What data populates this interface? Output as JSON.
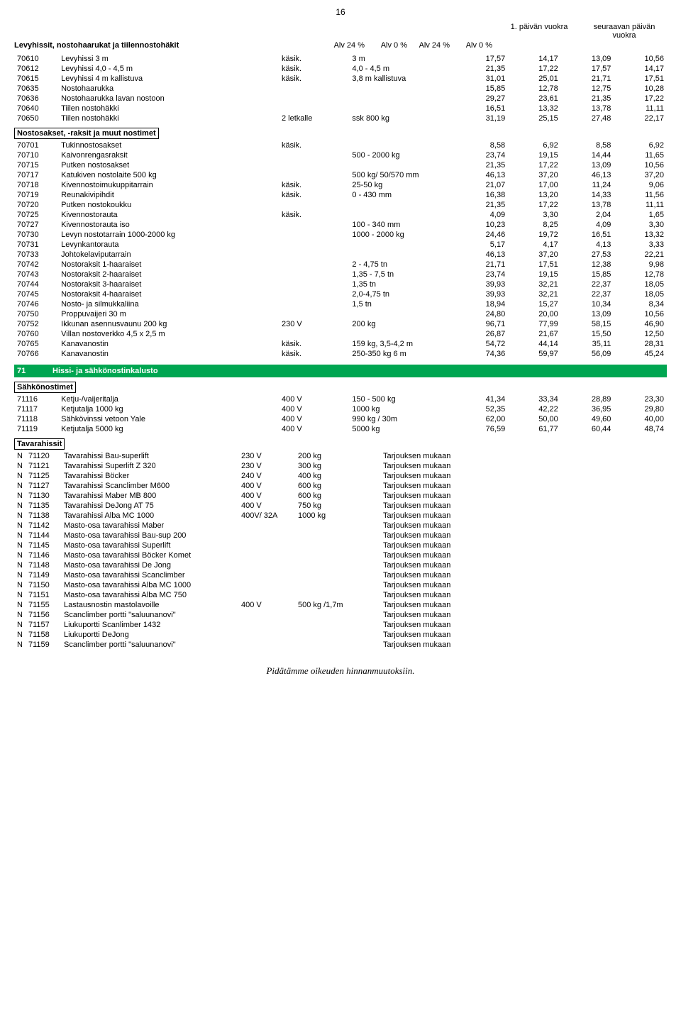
{
  "page_number": "16",
  "header": {
    "top_left": "1. päivän vuokra",
    "top_right": "seuraavan päivän vuokra",
    "sub": [
      "Alv 24 %",
      "Alv 0 %",
      "Alv 24 %",
      "Alv 0 %"
    ]
  },
  "colors": {
    "green": "#00a651",
    "text": "#000000",
    "bg": "#ffffff"
  },
  "section1": {
    "title": "Levyhissit, nostohaarukat ja tiilennostohäkit",
    "rows": [
      [
        "70610",
        "Levyhissi 3 m",
        "käsik.",
        "3 m",
        "17,57",
        "14,17",
        "13,09",
        "10,56"
      ],
      [
        "70612",
        "Levyhissi 4,0 - 4,5 m",
        "käsik.",
        "4,0 - 4,5 m",
        "21,35",
        "17,22",
        "17,57",
        "14,17"
      ],
      [
        "70615",
        "Levyhissi 4 m kallistuva",
        "käsik.",
        "3,8 m kallistuva",
        "31,01",
        "25,01",
        "21,71",
        "17,51"
      ],
      [
        "70635",
        "Nostohaarukka",
        "",
        "",
        "15,85",
        "12,78",
        "12,75",
        "10,28"
      ],
      [
        "70636",
        "Nostohaarukka lavan nostoon",
        "",
        "",
        "29,27",
        "23,61",
        "21,35",
        "17,22"
      ],
      [
        "70640",
        "Tiilen nostohäkki",
        "",
        "",
        "16,51",
        "13,32",
        "13,78",
        "11,11"
      ],
      [
        "70650",
        "Tiilen nostohäkki",
        "2 letkalle",
        "ssk 800 kg",
        "31,19",
        "25,15",
        "27,48",
        "22,17"
      ]
    ]
  },
  "section2": {
    "title": "Nostosakset, -raksit ja muut nostimet",
    "rows": [
      [
        "70701",
        "Tukinnostosakset",
        "käsik.",
        "",
        "8,58",
        "6,92",
        "8,58",
        "6,92"
      ],
      [
        "70710",
        "Kaivonrengasraksit",
        "",
        "500 - 2000 kg",
        "23,74",
        "19,15",
        "14,44",
        "11,65"
      ],
      [
        "70715",
        "Putken nostosakset",
        "",
        "",
        "21,35",
        "17,22",
        "13,09",
        "10,56"
      ],
      [
        "70717",
        "Katukiven nostolaite 500 kg",
        "",
        "500 kg/ 50/570 mm",
        "46,13",
        "37,20",
        "46,13",
        "37,20"
      ],
      [
        "70718",
        "Kivennostoimukuppitarrain",
        "käsik.",
        "25-50 kg",
        "21,07",
        "17,00",
        "11,24",
        "9,06"
      ],
      [
        "70719",
        "Reunakivipihdit",
        "käsik.",
        "0 - 430 mm",
        "16,38",
        "13,20",
        "14,33",
        "11,56"
      ],
      [
        "70720",
        "Putken nostokoukku",
        "",
        "",
        "21,35",
        "17,22",
        "13,78",
        "11,11"
      ],
      [
        "70725",
        "Kivennostorauta",
        "käsik.",
        "",
        "4,09",
        "3,30",
        "2,04",
        "1,65"
      ],
      [
        "70727",
        "Kivennostorauta iso",
        "",
        "100 - 340 mm",
        "10,23",
        "8,25",
        "4,09",
        "3,30"
      ],
      [
        "70730",
        "Levyn nostotarrain 1000-2000 kg",
        "",
        "1000 - 2000 kg",
        "24,46",
        "19,72",
        "16,51",
        "13,32"
      ],
      [
        "70731",
        "Levynkantorauta",
        "",
        "",
        "5,17",
        "4,17",
        "4,13",
        "3,33"
      ],
      [
        "70733",
        "Johtokelaviputarrain",
        "",
        "",
        "46,13",
        "37,20",
        "27,53",
        "22,21"
      ],
      [
        "70742",
        "Nostoraksit 1-haaraiset",
        "",
        "2 - 4,75 tn",
        "21,71",
        "17,51",
        "12,38",
        "9,98"
      ],
      [
        "70743",
        "Nostoraksit 2-haaraiset",
        "",
        "1,35 - 7,5 tn",
        "23,74",
        "19,15",
        "15,85",
        "12,78"
      ],
      [
        "70744",
        "Nostoraksit 3-haaraiset",
        "",
        "1,35 tn",
        "39,93",
        "32,21",
        "22,37",
        "18,05"
      ],
      [
        "70745",
        "Nostoraksit 4-haaraiset",
        "",
        "2,0-4,75 tn",
        "39,93",
        "32,21",
        "22,37",
        "18,05"
      ],
      [
        "70746",
        "Nosto- ja silmukkaliina",
        "",
        "1,5 tn",
        "18,94",
        "15,27",
        "10,34",
        "8,34"
      ],
      [
        "70750",
        "Proppuvaijeri 30 m",
        "",
        "",
        "24,80",
        "20,00",
        "13,09",
        "10,56"
      ],
      [
        "70752",
        "Ikkunan asennusvaunu 200 kg",
        "230 V",
        "200 kg",
        "96,71",
        "77,99",
        "58,15",
        "46,90"
      ],
      [
        "70760",
        "Villan nostoverkko 4,5 x 2,5 m",
        "",
        "",
        "26,87",
        "21,67",
        "15,50",
        "12,50"
      ],
      [
        "70765",
        "Kanavanostin",
        "käsik.",
        "159 kg, 3,5-4,2 m",
        "54,72",
        "44,14",
        "35,11",
        "28,31"
      ],
      [
        "70766",
        "Kanavanostin",
        "käsik.",
        "250-350 kg 6 m",
        "74,36",
        "59,97",
        "56,09",
        "45,24"
      ]
    ]
  },
  "section3": {
    "code": "71",
    "title": "Hissi- ja sähkönostinkalusto"
  },
  "section4": {
    "title": "Sähkönostimet",
    "rows": [
      [
        "71116",
        "Ketju-/vaijeritalja",
        "400 V",
        "150 - 500 kg",
        "41,34",
        "33,34",
        "28,89",
        "23,30"
      ],
      [
        "71117",
        "Ketjutalja 1000 kg",
        "400 V",
        "1000 kg",
        "52,35",
        "42,22",
        "36,95",
        "29,80"
      ],
      [
        "71118",
        "Sähkövinssi vetoon Yale",
        "400 V",
        "990 kg / 30m",
        "62,00",
        "50,00",
        "49,60",
        "40,00"
      ],
      [
        "71119",
        "Ketjutalja 5000 kg",
        "400 V",
        "5000 kg",
        "76,59",
        "61,77",
        "60,44",
        "48,74"
      ]
    ]
  },
  "section5": {
    "title": "Tavarahissit",
    "offer": "Tarjouksen mukaan",
    "rows": [
      [
        "N",
        "71120",
        "Tavarahissi Bau-superlift",
        "230 V",
        "200 kg"
      ],
      [
        "N",
        "71121",
        "Tavarahissi Superlift Z 320",
        "230 V",
        "300 kg"
      ],
      [
        "N",
        "71125",
        "Tavarahissi Böcker",
        "240 V",
        "400 kg"
      ],
      [
        "N",
        "71127",
        "Tavarahissi Scanclimber M600",
        "400 V",
        "600 kg"
      ],
      [
        "N",
        "71130",
        "Tavarahissi Maber MB 800",
        "400 V",
        "600 kg"
      ],
      [
        "N",
        "71135",
        "Tavarahissi DeJong AT 75",
        "400 V",
        "750 kg"
      ],
      [
        "N",
        "71138",
        "Tavarahissi Alba MC 1000",
        "400V/ 32A",
        "1000 kg"
      ],
      [
        "N",
        "71142",
        "Masto-osa tavarahissi Maber",
        "",
        ""
      ],
      [
        "N",
        "71144",
        "Masto-osa tavarahissi Bau-sup 200",
        "",
        ""
      ],
      [
        "N",
        "71145",
        "Masto-osa tavarahissi Superlift",
        "",
        ""
      ],
      [
        "N",
        "71146",
        "Masto-osa tavarahissi Böcker Komet",
        "",
        ""
      ],
      [
        "N",
        "71148",
        "Masto-osa tavarahissi De Jong",
        "",
        ""
      ],
      [
        "N",
        "71149",
        "Masto-osa tavarahissi Scanclimber",
        "",
        ""
      ],
      [
        "N",
        "71150",
        "Masto-osa tavarahissi Alba MC 1000",
        "",
        ""
      ],
      [
        "N",
        "71151",
        "Masto-osa tavarahissi Alba MC 750",
        "",
        ""
      ],
      [
        "N",
        "71155",
        "Lastausnostin mastolavoille",
        "400 V",
        "500 kg /1,7m"
      ],
      [
        "N",
        "71156",
        "Scanclimber portti \"saluunanovi\"",
        "",
        ""
      ],
      [
        "N",
        "71157",
        "Liukuportti Scanlimber 1432",
        "",
        ""
      ],
      [
        "N",
        "71158",
        "Liukuportti DeJong",
        "",
        ""
      ],
      [
        "N",
        "71159",
        "Scanclimber portti \"saluunanovi\"",
        "",
        ""
      ]
    ]
  },
  "footer": "Pidätämme oikeuden hinnanmuutoksiin."
}
